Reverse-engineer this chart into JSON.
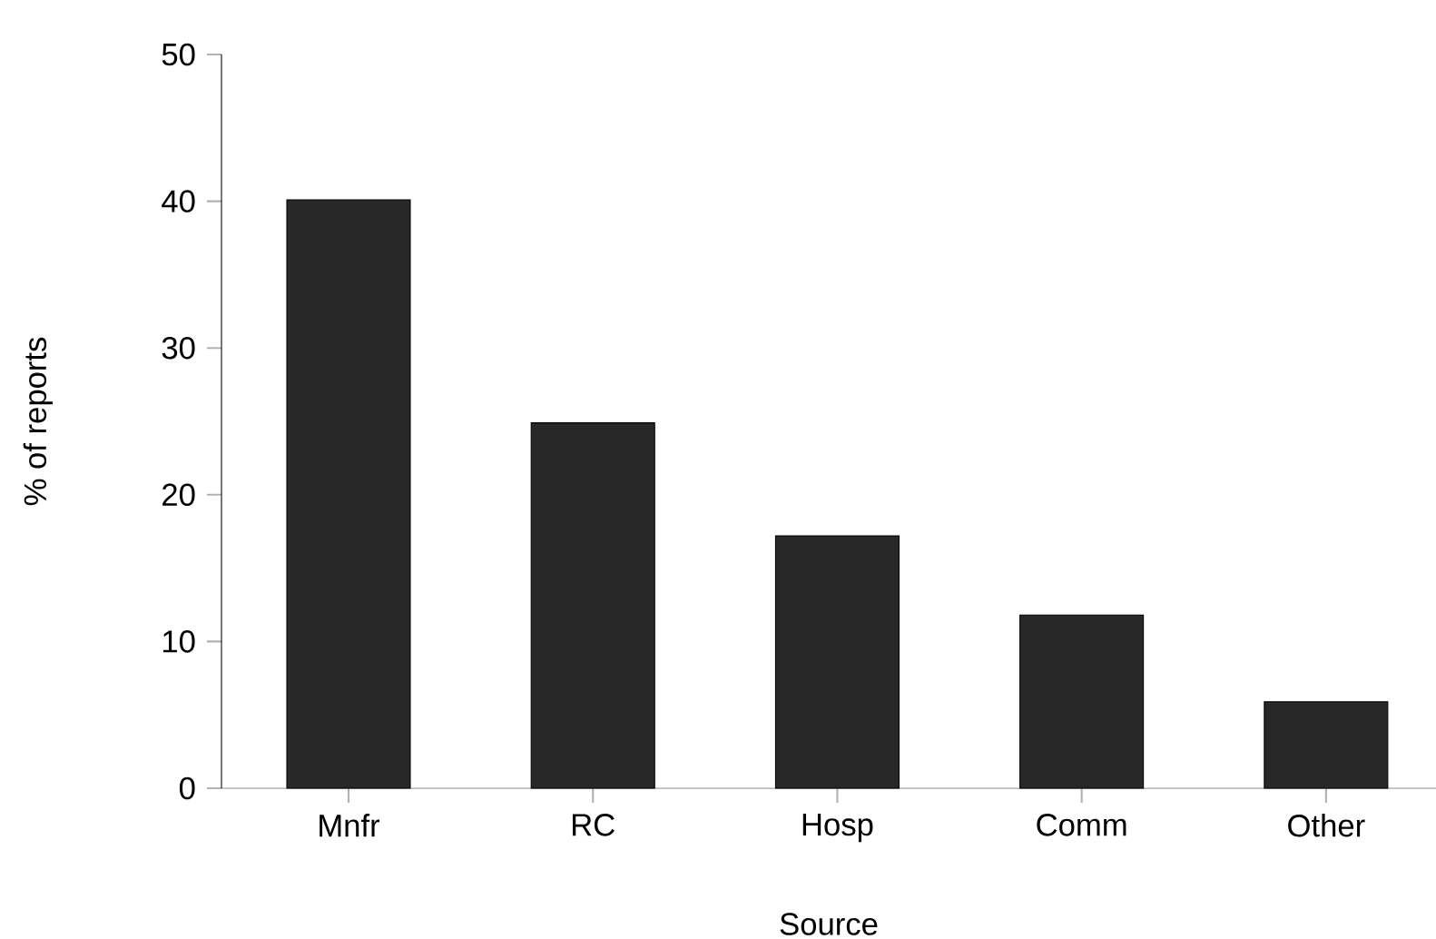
{
  "chart_data": {
    "type": "bar",
    "xlabel": "Source",
    "ylabel": "% of reports",
    "categories": [
      "Mnfr",
      "RC",
      "Hosp",
      "Comm",
      "Other"
    ],
    "values": [
      40.1,
      24.9,
      17.2,
      11.8,
      5.9
    ],
    "color": "#282828",
    "ylim": [
      0,
      50
    ],
    "yticks": [
      0,
      10,
      20,
      30,
      40,
      50
    ]
  }
}
